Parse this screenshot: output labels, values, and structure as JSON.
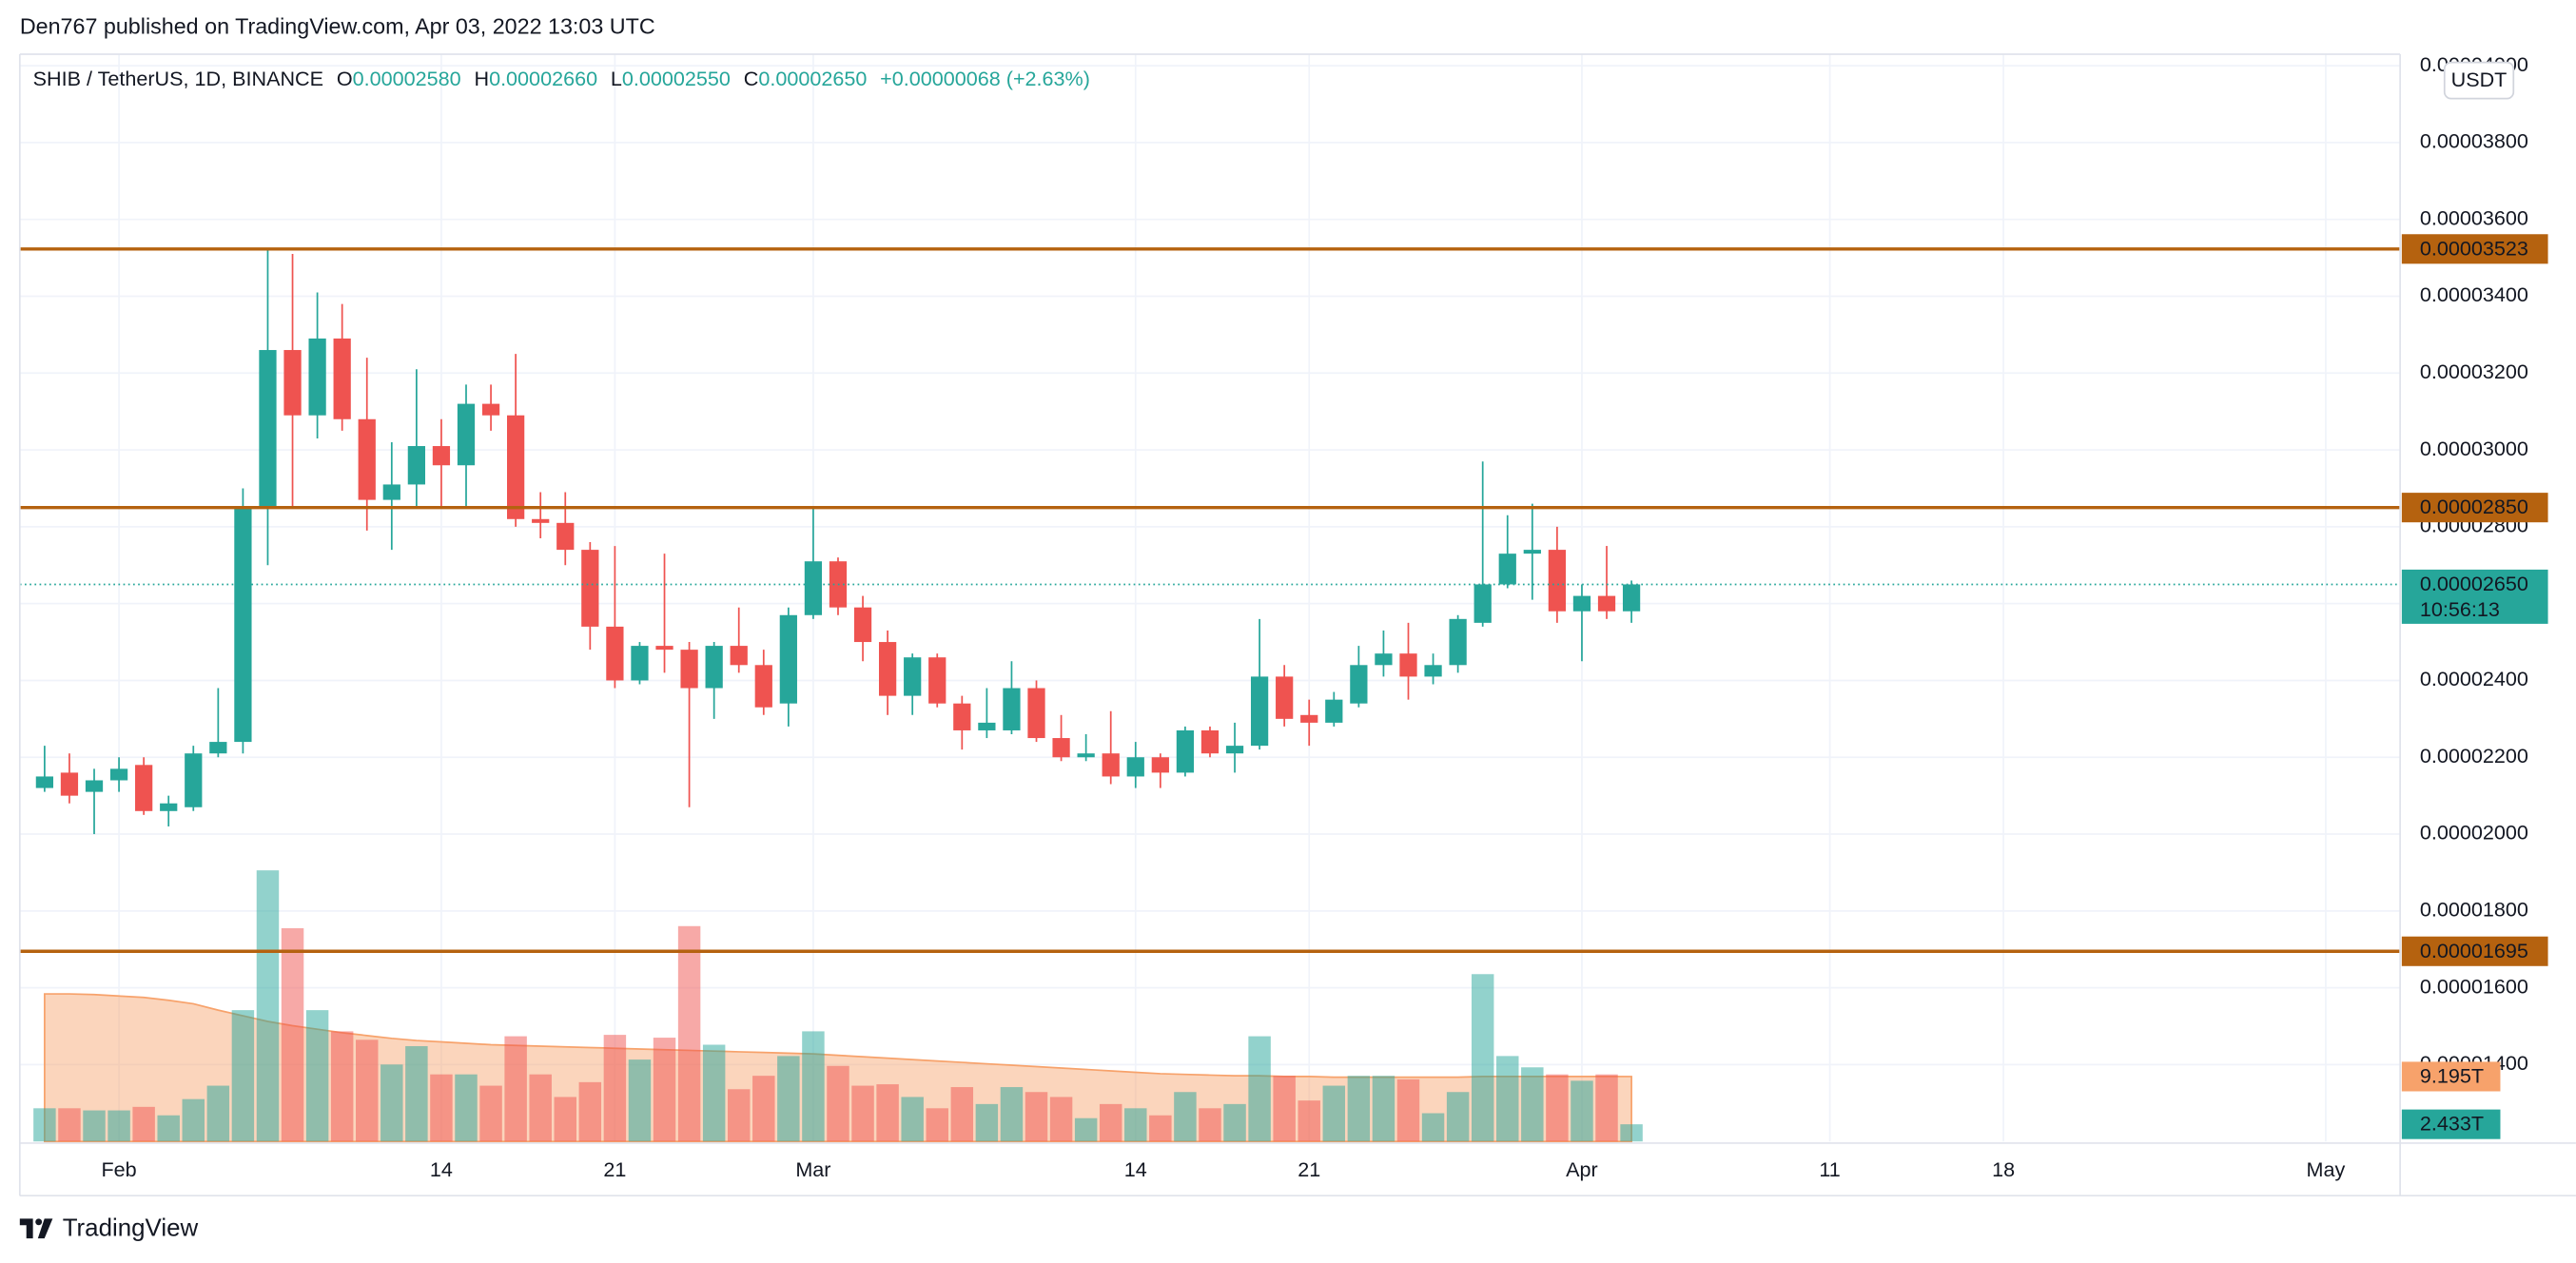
{
  "header": {
    "publisher": "Den767 published on TradingView.com, Apr 03, 2022 13:03 UTC"
  },
  "chart_data": {
    "type": "candlestick",
    "title": "SHIB / TetherUS, 1D, BINANCE",
    "ohlc_legend": [
      {
        "key": "O",
        "value": "0.00002580"
      },
      {
        "key": "H",
        "value": "0.00002660"
      },
      {
        "key": "L",
        "value": "0.00002550"
      },
      {
        "key": "C",
        "value": "0.00002650"
      }
    ],
    "change": "+0.00000068 (+2.63%)",
    "currency": "USDT",
    "x": [
      "01-29",
      "01-30",
      "01-31",
      "02-01",
      "02-02",
      "02-03",
      "02-04",
      "02-05",
      "02-06",
      "02-07",
      "02-08",
      "02-09",
      "02-10",
      "02-11",
      "02-12",
      "02-13",
      "02-14",
      "02-15",
      "02-16",
      "02-17",
      "02-18",
      "02-19",
      "02-20",
      "02-21",
      "02-22",
      "02-23",
      "02-24",
      "02-25",
      "02-26",
      "02-27",
      "02-28",
      "03-01",
      "03-02",
      "03-03",
      "03-04",
      "03-05",
      "03-06",
      "03-07",
      "03-08",
      "03-09",
      "03-10",
      "03-11",
      "03-12",
      "03-13",
      "03-14",
      "03-15",
      "03-16",
      "03-17",
      "03-18",
      "03-19",
      "03-20",
      "03-21",
      "03-22",
      "03-23",
      "03-24",
      "03-25",
      "03-26",
      "03-27",
      "03-28",
      "03-29",
      "03-30",
      "03-31",
      "04-01",
      "04-02",
      "04-03"
    ],
    "open": [
      2.12e-05,
      2.16e-05,
      2.11e-05,
      2.14e-05,
      2.18e-05,
      2.06e-05,
      2.07e-05,
      2.21e-05,
      2.24e-05,
      2.85e-05,
      3.26e-05,
      3.09e-05,
      3.29e-05,
      3.08e-05,
      2.87e-05,
      2.91e-05,
      3.01e-05,
      2.96e-05,
      3.12e-05,
      3.09e-05,
      2.82e-05,
      2.81e-05,
      2.74e-05,
      2.54e-05,
      2.4e-05,
      2.49e-05,
      2.48e-05,
      2.38e-05,
      2.49e-05,
      2.44e-05,
      2.34e-05,
      2.57e-05,
      2.71e-05,
      2.59e-05,
      2.5e-05,
      2.36e-05,
      2.46e-05,
      2.34e-05,
      2.27e-05,
      2.27e-05,
      2.38e-05,
      2.25e-05,
      2.2e-05,
      2.21e-05,
      2.15e-05,
      2.2e-05,
      2.16e-05,
      2.27e-05,
      2.21e-05,
      2.23e-05,
      2.41e-05,
      2.31e-05,
      2.29e-05,
      2.34e-05,
      2.44e-05,
      2.47e-05,
      2.41e-05,
      2.44e-05,
      2.55e-05,
      2.65e-05,
      2.73e-05,
      2.74e-05,
      2.58e-05,
      2.62e-05,
      2.58e-05
    ],
    "high": [
      2.23e-05,
      2.21e-05,
      2.17e-05,
      2.2e-05,
      2.2e-05,
      2.1e-05,
      2.23e-05,
      2.38e-05,
      2.9e-05,
      3.52e-05,
      3.51e-05,
      3.41e-05,
      3.38e-05,
      3.24e-05,
      3.02e-05,
      3.21e-05,
      3.08e-05,
      3.17e-05,
      3.17e-05,
      3.25e-05,
      2.89e-05,
      2.89e-05,
      2.76e-05,
      2.75e-05,
      2.5e-05,
      2.73e-05,
      2.5e-05,
      2.5e-05,
      2.59e-05,
      2.48e-05,
      2.59e-05,
      2.85e-05,
      2.72e-05,
      2.62e-05,
      2.53e-05,
      2.47e-05,
      2.47e-05,
      2.36e-05,
      2.38e-05,
      2.45e-05,
      2.4e-05,
      2.31e-05,
      2.26e-05,
      2.32e-05,
      2.24e-05,
      2.21e-05,
      2.28e-05,
      2.28e-05,
      2.29e-05,
      2.56e-05,
      2.44e-05,
      2.35e-05,
      2.37e-05,
      2.49e-05,
      2.53e-05,
      2.55e-05,
      2.47e-05,
      2.57e-05,
      2.97e-05,
      2.83e-05,
      2.86e-05,
      2.8e-05,
      2.65e-05,
      2.75e-05,
      2.66e-05
    ],
    "low": [
      2.11e-05,
      2.08e-05,
      2e-05,
      2.11e-05,
      2.05e-05,
      2.02e-05,
      2.06e-05,
      2.2e-05,
      2.21e-05,
      2.7e-05,
      2.85e-05,
      3.03e-05,
      3.05e-05,
      2.79e-05,
      2.74e-05,
      2.85e-05,
      2.85e-05,
      2.85e-05,
      3.05e-05,
      2.8e-05,
      2.77e-05,
      2.7e-05,
      2.48e-05,
      2.38e-05,
      2.39e-05,
      2.42e-05,
      2.07e-05,
      2.3e-05,
      2.42e-05,
      2.31e-05,
      2.28e-05,
      2.56e-05,
      2.57e-05,
      2.45e-05,
      2.31e-05,
      2.31e-05,
      2.33e-05,
      2.22e-05,
      2.25e-05,
      2.26e-05,
      2.24e-05,
      2.19e-05,
      2.19e-05,
      2.13e-05,
      2.12e-05,
      2.12e-05,
      2.15e-05,
      2.2e-05,
      2.16e-05,
      2.22e-05,
      2.28e-05,
      2.23e-05,
      2.28e-05,
      2.33e-05,
      2.41e-05,
      2.35e-05,
      2.39e-05,
      2.42e-05,
      2.54e-05,
      2.64e-05,
      2.61e-05,
      2.55e-05,
      2.45e-05,
      2.56e-05,
      2.55e-05
    ],
    "close": [
      2.15e-05,
      2.1e-05,
      2.14e-05,
      2.17e-05,
      2.06e-05,
      2.08e-05,
      2.21e-05,
      2.24e-05,
      2.85e-05,
      3.26e-05,
      3.09e-05,
      3.29e-05,
      3.08e-05,
      2.87e-05,
      2.91e-05,
      3.01e-05,
      2.96e-05,
      3.12e-05,
      3.09e-05,
      2.82e-05,
      2.81e-05,
      2.74e-05,
      2.54e-05,
      2.4e-05,
      2.49e-05,
      2.48e-05,
      2.38e-05,
      2.49e-05,
      2.44e-05,
      2.33e-05,
      2.57e-05,
      2.71e-05,
      2.59e-05,
      2.5e-05,
      2.36e-05,
      2.46e-05,
      2.34e-05,
      2.27e-05,
      2.29e-05,
      2.38e-05,
      2.25e-05,
      2.2e-05,
      2.21e-05,
      2.15e-05,
      2.2e-05,
      2.16e-05,
      2.27e-05,
      2.21e-05,
      2.23e-05,
      2.41e-05,
      2.3e-05,
      2.29e-05,
      2.35e-05,
      2.44e-05,
      2.47e-05,
      2.41e-05,
      2.44e-05,
      2.56e-05,
      2.65e-05,
      2.73e-05,
      2.74e-05,
      2.58e-05,
      2.62e-05,
      2.58e-05,
      2.65e-05
    ],
    "up_color": "#26a69a",
    "down_color": "#ef5350",
    "xlim": [
      "01-28",
      "05-04"
    ],
    "xticks": [
      {
        "value": "02-01",
        "label": "Feb"
      },
      {
        "value": "02-14",
        "label": "14"
      },
      {
        "value": "02-21",
        "label": "21"
      },
      {
        "value": "03-01",
        "label": "Mar"
      },
      {
        "value": "03-14",
        "label": "14"
      },
      {
        "value": "03-21",
        "label": "21"
      },
      {
        "value": "04-01",
        "label": "Apr"
      },
      {
        "value": "04-11",
        "label": "11"
      },
      {
        "value": "04-18",
        "label": "18"
      },
      {
        "value": "05-01",
        "label": "May"
      }
    ],
    "ylim": [
      1.2e-05,
      4.03e-05
    ],
    "yticks": [
      {
        "value": 1.4e-05,
        "label": "0.00001400"
      },
      {
        "value": 1.6e-05,
        "label": "0.00001600"
      },
      {
        "value": 1.8e-05,
        "label": "0.00001800"
      },
      {
        "value": 2e-05,
        "label": "0.00002000"
      },
      {
        "value": 2.2e-05,
        "label": "0.00002200"
      },
      {
        "value": 2.4e-05,
        "label": "0.00002400"
      },
      {
        "value": 2.6e-05,
        "label": "0.00002600"
      },
      {
        "value": 2.8e-05,
        "label": "0.00002800"
      },
      {
        "value": 3e-05,
        "label": "0.00003000"
      },
      {
        "value": 3.2e-05,
        "label": "0.00003200"
      },
      {
        "value": 3.4e-05,
        "label": "0.00003400"
      },
      {
        "value": 3.6e-05,
        "label": "0.00003600"
      },
      {
        "value": 3.8e-05,
        "label": "0.00003800"
      },
      {
        "value": 4e-05,
        "label": "0.00004000"
      }
    ],
    "grid": true,
    "levels": [
      {
        "value": 3.523e-05,
        "label": "0.00003523"
      },
      {
        "value": 2.85e-05,
        "label": "0.00002850"
      },
      {
        "value": 1.695e-05,
        "label": "0.00001695"
      }
    ],
    "level_color": "#b5620f",
    "last_price": {
      "value": 2.65e-05,
      "label": "0.00002650",
      "countdown": "10:56:13"
    },
    "volume": {
      "values": [
        4.7,
        4.7,
        4.4,
        4.4,
        4.9,
        3.7,
        6.0,
        7.9,
        18.6,
        38.4,
        30.2,
        18.6,
        15.6,
        14.4,
        10.9,
        13.5,
        9.5,
        9.5,
        7.9,
        14.9,
        9.5,
        6.3,
        8.4,
        15.1,
        11.6,
        14.7,
        30.5,
        13.7,
        7.4,
        9.3,
        12.1,
        15.6,
        10.7,
        7.9,
        8.1,
        6.3,
        4.7,
        7.7,
        5.3,
        7.7,
        7.0,
        6.3,
        3.3,
        5.3,
        4.7,
        3.7,
        7.0,
        4.7,
        5.3,
        14.9,
        9.3,
        5.8,
        7.9,
        9.3,
        9.3,
        8.8,
        4.0,
        7.0,
        23.7,
        12.1,
        10.5,
        9.5,
        8.6,
        9.5,
        2.433
      ],
      "ylim": [
        0,
        154
      ],
      "ma": [
        20.9,
        20.9,
        20.8,
        20.6,
        20.4,
        20.0,
        19.5,
        18.6,
        17.8,
        17.0,
        16.4,
        15.9,
        15.4,
        15.0,
        14.6,
        14.3,
        14.1,
        13.9,
        13.7,
        13.6,
        13.5,
        13.4,
        13.3,
        13.2,
        13.1,
        13.0,
        12.9,
        12.8,
        12.7,
        12.6,
        12.5,
        12.4,
        12.2,
        12.0,
        11.8,
        11.6,
        11.4,
        11.2,
        11.0,
        10.8,
        10.6,
        10.4,
        10.2,
        10.0,
        9.8,
        9.6,
        9.5,
        9.4,
        9.3,
        9.3,
        9.2,
        9.2,
        9.1,
        9.1,
        9.1,
        9.1,
        9.1,
        9.1,
        9.2,
        9.2,
        9.2,
        9.2,
        9.2,
        9.2,
        9.195
      ],
      "ma_color": "#f7a26b",
      "tags": [
        {
          "value": 9.195,
          "label": "9.195T",
          "color": "#f7a26b"
        },
        {
          "value": 2.433,
          "label": "2.433T",
          "color": "#26a69a"
        }
      ]
    }
  },
  "footer": {
    "brand": "TradingView"
  }
}
